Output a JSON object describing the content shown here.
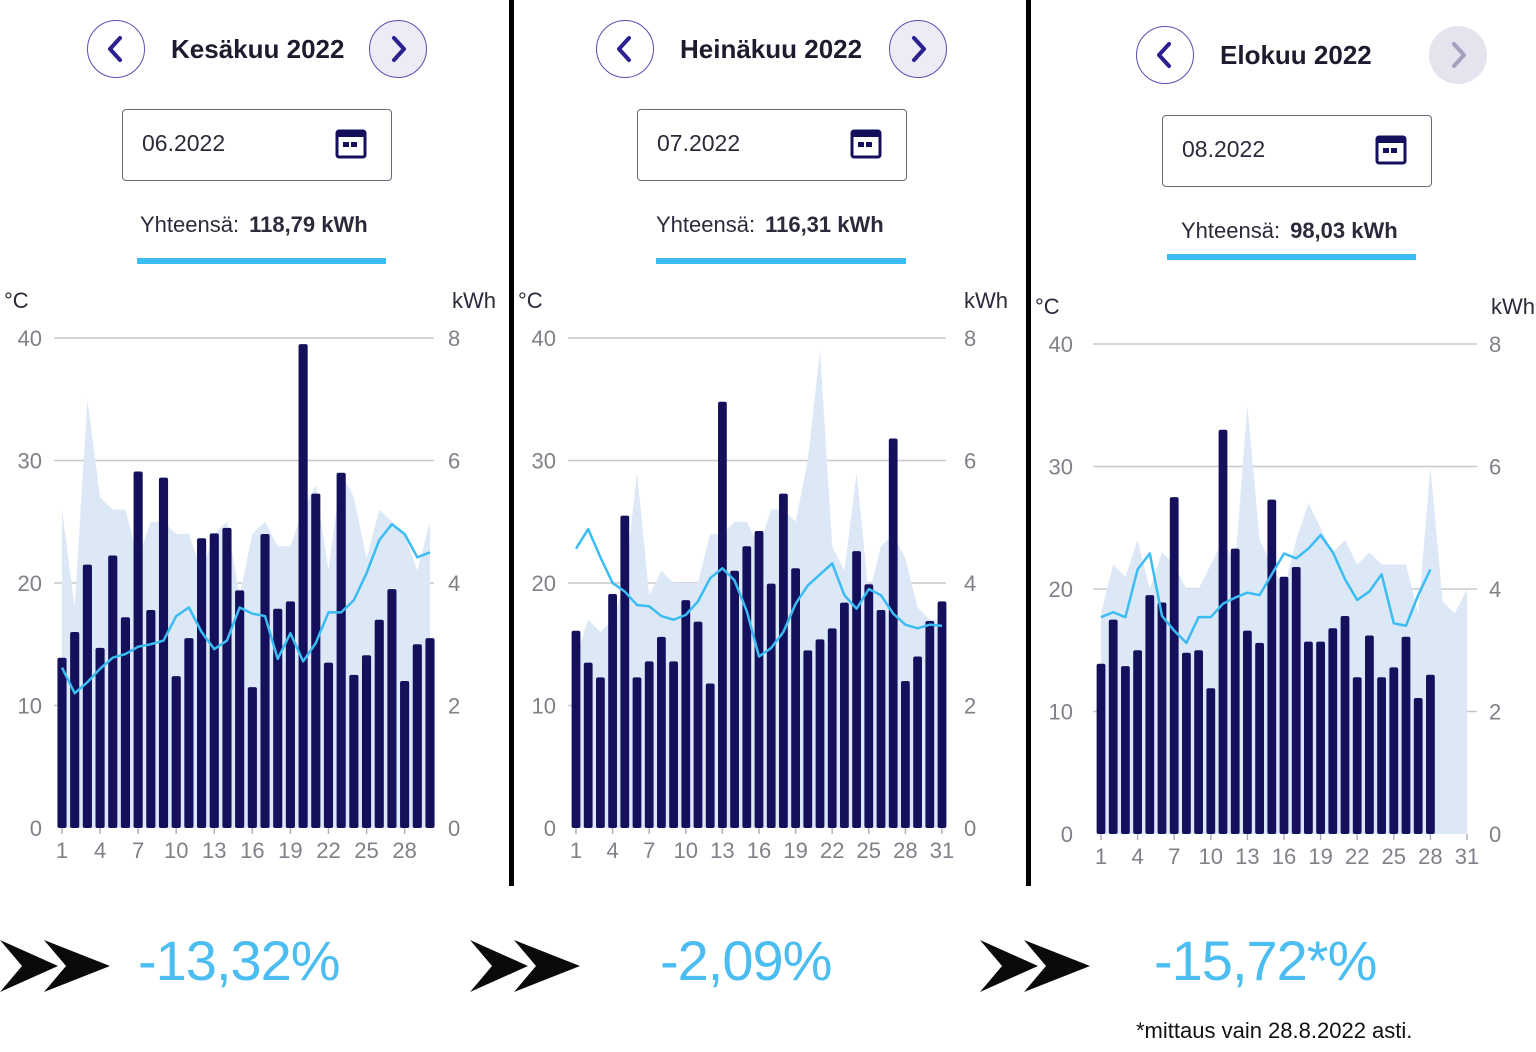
{
  "colors": {
    "bar": "#14105c",
    "temp_line": "#3bbcf2",
    "area": "#dde8f7",
    "grid": "#c8c8cc",
    "accent": "#4cbdf0"
  },
  "panels": [
    {
      "title": "Kesäkuu 2022",
      "date_value": "06.2022",
      "total_label": "Yhteensä:",
      "total_value": "118,79 kWh",
      "next_disabled": false,
      "change_pct": "-13,32%"
    },
    {
      "title": "Heinäkuu 2022",
      "date_value": "07.2022",
      "total_label": "Yhteensä:",
      "total_value": "116,31 kWh",
      "next_disabled": false,
      "change_pct": "-2,09%"
    },
    {
      "title": "Elokuu 2022",
      "date_value": "08.2022",
      "total_label": "Yhteensä:",
      "total_value": "98,03 kWh",
      "next_disabled": true,
      "change_pct": "-15,72*%"
    }
  ],
  "footnote": "*mittaus vain 28.8.2022 asti.",
  "icons": {
    "prev": "chevron-left-icon",
    "next": "chevron-right-icon",
    "calendar": "calendar-icon",
    "arrow": "double-arrow-icon"
  },
  "chart_data": [
    {
      "type": "bar",
      "title": "Kesäkuu 2022",
      "left_axis_label": "°C",
      "right_axis_label": "kWh",
      "left_ticks": [
        0,
        10,
        20,
        30,
        40
      ],
      "right_ticks": [
        0,
        2,
        4,
        6,
        8
      ],
      "x_ticks": [
        1,
        4,
        7,
        10,
        13,
        16,
        19,
        22,
        25,
        28
      ],
      "days": 30,
      "ylim_kwh": [
        0,
        8
      ],
      "ylim_temp": [
        0,
        40
      ],
      "kwh": [
        2.78,
        3.2,
        4.3,
        2.94,
        4.45,
        3.44,
        5.82,
        3.56,
        5.72,
        2.48,
        3.1,
        4.73,
        4.81,
        4.9,
        3.88,
        2.3,
        4.8,
        3.58,
        3.7,
        7.9,
        5.46,
        2.7,
        5.8,
        2.5,
        2.82,
        3.4,
        3.9,
        2.4,
        3.0,
        3.1
      ],
      "temp": [
        13.1,
        11.0,
        11.9,
        13.0,
        13.9,
        14.2,
        14.8,
        15.0,
        15.3,
        17.3,
        18.0,
        16.0,
        14.6,
        15.3,
        18.0,
        17.5,
        17.3,
        13.8,
        15.9,
        13.6,
        15.1,
        17.6,
        17.6,
        18.6,
        20.8,
        23.5,
        24.8,
        24.0,
        22.1,
        22.5
      ],
      "area_max_temp": [
        26,
        18,
        35,
        27,
        26,
        26,
        22,
        25,
        25,
        24,
        24,
        21,
        24,
        25,
        19,
        24,
        25,
        23,
        23,
        26,
        28,
        21,
        29,
        27,
        22,
        26,
        25,
        24,
        21,
        25
      ]
    },
    {
      "type": "bar",
      "title": "Heinäkuu 2022",
      "left_axis_label": "°C",
      "right_axis_label": "kWh",
      "left_ticks": [
        0,
        10,
        20,
        30,
        40
      ],
      "right_ticks": [
        0,
        2,
        4,
        6,
        8
      ],
      "x_ticks": [
        1,
        4,
        7,
        10,
        13,
        16,
        19,
        22,
        25,
        28,
        31
      ],
      "days": 31,
      "ylim_kwh": [
        0,
        8
      ],
      "ylim_temp": [
        0,
        40
      ],
      "kwh": [
        3.22,
        2.7,
        2.46,
        3.82,
        5.1,
        2.46,
        2.72,
        3.12,
        2.72,
        3.72,
        3.37,
        2.36,
        6.96,
        4.2,
        4.6,
        4.85,
        3.99,
        5.46,
        4.24,
        2.9,
        3.08,
        3.26,
        3.68,
        4.52,
        3.98,
        3.56,
        6.36,
        2.4,
        2.8,
        3.38,
        3.7
      ],
      "temp": [
        22.8,
        24.4,
        22.1,
        20.0,
        19.3,
        18.2,
        18.1,
        17.3,
        17.0,
        17.4,
        18.5,
        20.4,
        21.2,
        20.2,
        17.7,
        14.0,
        14.7,
        16.0,
        18.3,
        19.8,
        20.7,
        21.6,
        19.0,
        17.9,
        19.5,
        19.0,
        17.5,
        16.6,
        16.3,
        16.6,
        16.5
      ],
      "area_max_temp": [
        14,
        17,
        16,
        17,
        20,
        29,
        19,
        21,
        20,
        20,
        20,
        24,
        24,
        25,
        25,
        23,
        26,
        26,
        25,
        30,
        39,
        23,
        21,
        29,
        19,
        23,
        24,
        22,
        18,
        17,
        17
      ]
    },
    {
      "type": "bar",
      "title": "Elokuu 2022",
      "left_axis_label": "°C",
      "right_axis_label": "kWh",
      "left_ticks": [
        0,
        10,
        20,
        30,
        40
      ],
      "right_ticks": [
        0,
        2,
        4,
        6,
        8
      ],
      "x_ticks": [
        1,
        4,
        7,
        10,
        13,
        16,
        19,
        22,
        25,
        28,
        31
      ],
      "days": 31,
      "ylim_kwh": [
        0,
        8
      ],
      "ylim_temp": [
        0,
        40
      ],
      "kwh": [
        2.78,
        3.5,
        2.74,
        3.0,
        3.9,
        3.78,
        5.5,
        2.96,
        3.0,
        2.38,
        6.6,
        4.66,
        3.32,
        3.12,
        5.46,
        4.2,
        4.36,
        3.14,
        3.14,
        3.36,
        3.56,
        2.56,
        3.24,
        2.56,
        2.72,
        3.22,
        2.22,
        2.6
      ],
      "temp": [
        17.7,
        18.1,
        17.7,
        21.6,
        22.9,
        17.8,
        16.6,
        15.6,
        17.7,
        17.7,
        18.8,
        19.3,
        19.7,
        19.5,
        21.2,
        22.9,
        22.5,
        23.3,
        24.4,
        23.0,
        20.8,
        19.1,
        19.8,
        21.2,
        17.2,
        17.0,
        19.5,
        21.6
      ],
      "area_max_temp": [
        18,
        22,
        21,
        24,
        20,
        23,
        22,
        20,
        20,
        22,
        24,
        22,
        35,
        24,
        22,
        20,
        24,
        27,
        25,
        23,
        24,
        22,
        23,
        22,
        22,
        22,
        18,
        30,
        19,
        18,
        20
      ]
    }
  ]
}
